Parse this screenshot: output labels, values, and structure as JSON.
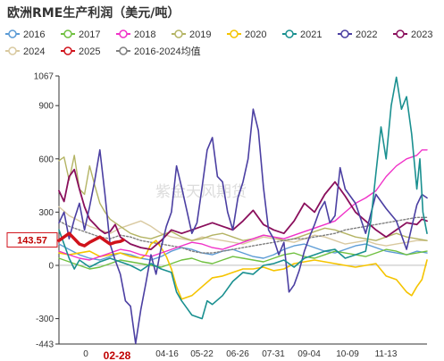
{
  "chart_data": {
    "type": "line",
    "title": "欧洲RME生产利润（美元/吨）",
    "watermark": "紫金天风期货",
    "x_ticks": [
      "0",
      "02-28",
      "04-16",
      "05-22",
      "06-26",
      "07-31",
      "09-04",
      "10-09",
      "11-13"
    ],
    "highlight_tick": "02-28",
    "y_ticks": [
      1067,
      900,
      600,
      300,
      0,
      -300,
      -443
    ],
    "ylim": [
      -443,
      1067
    ],
    "latest_value_label": "143.57",
    "grid": false,
    "legend_position": "top",
    "series": [
      {
        "name": "2016",
        "color": "#5b9bd5",
        "width": 1.4,
        "x": [
          0,
          10,
          20,
          30,
          40,
          50,
          60,
          70,
          80,
          90,
          100,
          110,
          120,
          130,
          140,
          150,
          160,
          170,
          180,
          190,
          200,
          210,
          220,
          230,
          240,
          250,
          260,
          270,
          280,
          290,
          300,
          310,
          320,
          330,
          340,
          350,
          360
        ],
        "y": [
          120,
          90,
          60,
          40,
          30,
          50,
          70,
          60,
          40,
          30,
          50,
          80,
          100,
          90,
          70,
          60,
          80,
          90,
          70,
          50,
          40,
          60,
          90,
          110,
          120,
          100,
          80,
          70,
          90,
          110,
          120,
          100,
          80,
          70,
          60,
          80,
          70
        ]
      },
      {
        "name": "2017",
        "color": "#70c040",
        "width": 1.4,
        "x": [
          0,
          10,
          20,
          30,
          40,
          50,
          60,
          70,
          80,
          90,
          100,
          110,
          120,
          130,
          140,
          150,
          160,
          170,
          180,
          190,
          200,
          210,
          220,
          230,
          240,
          250,
          260,
          270,
          280,
          290,
          300,
          310,
          320,
          330,
          340,
          350,
          360
        ],
        "y": [
          40,
          20,
          0,
          -20,
          -10,
          10,
          30,
          20,
          10,
          0,
          -10,
          10,
          30,
          40,
          20,
          10,
          30,
          50,
          40,
          30,
          20,
          40,
          60,
          70,
          50,
          40,
          60,
          80,
          70,
          60,
          50,
          70,
          90,
          80,
          60,
          70,
          80
        ]
      },
      {
        "name": "2018",
        "color": "#f032c8",
        "width": 1.4,
        "x": [
          0,
          10,
          20,
          30,
          40,
          50,
          60,
          70,
          80,
          90,
          100,
          110,
          120,
          130,
          140,
          150,
          160,
          170,
          180,
          190,
          200,
          210,
          220,
          230,
          240,
          250,
          260,
          270,
          280,
          290,
          300,
          310,
          320,
          330,
          340,
          350,
          355,
          360
        ],
        "y": [
          80,
          60,
          40,
          30,
          50,
          70,
          90,
          80,
          60,
          50,
          70,
          90,
          110,
          130,
          120,
          100,
          90,
          110,
          130,
          150,
          170,
          160,
          150,
          170,
          190,
          210,
          230,
          250,
          300,
          350,
          380,
          420,
          500,
          560,
          600,
          620,
          650,
          650
        ]
      },
      {
        "name": "2019",
        "color": "#b4b464",
        "width": 1.4,
        "x": [
          0,
          5,
          10,
          15,
          20,
          25,
          30,
          35,
          40,
          45,
          50,
          55,
          60,
          65,
          70,
          80,
          90,
          100,
          110,
          120,
          130,
          140,
          150,
          160,
          170,
          180,
          190,
          200,
          210,
          220,
          230,
          240,
          250,
          260,
          270,
          280,
          290,
          300,
          310,
          320,
          330,
          340,
          350,
          360
        ],
        "y": [
          590,
          610,
          480,
          620,
          430,
          400,
          560,
          450,
          350,
          300,
          260,
          240,
          220,
          200,
          180,
          160,
          150,
          170,
          190,
          160,
          140,
          150,
          170,
          180,
          160,
          140,
          150,
          170,
          160,
          140,
          150,
          170,
          190,
          210,
          200,
          180,
          160,
          150,
          140,
          160,
          180,
          160,
          150,
          140
        ]
      },
      {
        "name": "2020",
        "color": "#f5c400",
        "width": 1.6,
        "x": [
          0,
          10,
          20,
          30,
          40,
          50,
          60,
          70,
          80,
          85,
          90,
          95,
          100,
          105,
          110,
          115,
          120,
          130,
          140,
          150,
          160,
          170,
          180,
          190,
          200,
          210,
          220,
          230,
          240,
          250,
          260,
          270,
          280,
          290,
          300,
          310,
          320,
          330,
          340,
          345,
          350,
          355,
          360
        ],
        "y": [
          70,
          60,
          70,
          80,
          50,
          60,
          70,
          50,
          40,
          60,
          120,
          140,
          100,
          50,
          -20,
          -120,
          -190,
          -170,
          -120,
          -70,
          -60,
          -40,
          -20,
          -20,
          -10,
          -30,
          -20,
          10,
          20,
          30,
          20,
          10,
          0,
          -10,
          0,
          10,
          -60,
          -80,
          -150,
          -170,
          -120,
          -80,
          30
        ]
      },
      {
        "name": "2021",
        "color": "#1a9090",
        "width": 1.6,
        "x": [
          0,
          5,
          10,
          15,
          20,
          25,
          30,
          40,
          50,
          60,
          70,
          80,
          90,
          100,
          110,
          115,
          120,
          125,
          130,
          135,
          140,
          145,
          150,
          160,
          170,
          180,
          190,
          200,
          210,
          220,
          230,
          240,
          250,
          260,
          270,
          280,
          290,
          300,
          305,
          310,
          315,
          320,
          325,
          330,
          335,
          340,
          345,
          350,
          353,
          356,
          360
        ],
        "y": [
          200,
          120,
          40,
          -20,
          30,
          10,
          -10,
          20,
          40,
          20,
          0,
          -30,
          10,
          -20,
          -40,
          -150,
          -200,
          -240,
          -280,
          -290,
          -300,
          -200,
          -220,
          -170,
          -90,
          -40,
          -50,
          0,
          10,
          30,
          -10,
          40,
          60,
          80,
          90,
          40,
          60,
          80,
          250,
          520,
          780,
          600,
          900,
          1060,
          880,
          950,
          740,
          430,
          600,
          300,
          180
        ]
      },
      {
        "name": "2022",
        "color": "#4b3fa2",
        "width": 1.6,
        "x": [
          0,
          5,
          10,
          15,
          20,
          25,
          30,
          35,
          40,
          45,
          50,
          55,
          60,
          65,
          70,
          75,
          80,
          85,
          90,
          95,
          100,
          105,
          110,
          115,
          120,
          125,
          130,
          135,
          140,
          145,
          150,
          155,
          160,
          165,
          170,
          175,
          180,
          185,
          190,
          195,
          200,
          205,
          210,
          215,
          220,
          225,
          230,
          235,
          240,
          245,
          250,
          255,
          260,
          265,
          270,
          275,
          280,
          290,
          300,
          310,
          320,
          330,
          340,
          350,
          355,
          360
        ],
        "y": [
          240,
          300,
          150,
          260,
          350,
          200,
          330,
          480,
          650,
          400,
          120,
          30,
          -50,
          -200,
          -230,
          -440,
          -250,
          -100,
          60,
          -50,
          100,
          220,
          300,
          560,
          440,
          310,
          180,
          240,
          440,
          650,
          720,
          500,
          470,
          300,
          200,
          380,
          470,
          600,
          880,
          760,
          440,
          200,
          150,
          60,
          130,
          -150,
          -110,
          -30,
          80,
          160,
          230,
          310,
          360,
          240,
          280,
          550,
          430,
          350,
          180,
          400,
          320,
          250,
          90,
          340,
          400,
          380
        ]
      },
      {
        "name": "2023",
        "color": "#8a0f5c",
        "width": 1.8,
        "x": [
          0,
          5,
          10,
          15,
          20,
          25,
          30,
          35,
          40,
          45,
          50,
          55,
          60,
          70,
          80,
          90,
          100,
          110,
          120,
          130,
          140,
          150,
          160,
          170,
          180,
          190,
          200,
          210,
          220,
          230,
          240,
          250,
          260,
          270,
          280,
          290,
          300,
          310,
          320,
          330,
          340,
          350,
          355,
          360
        ],
        "y": [
          420,
          360,
          500,
          540,
          430,
          330,
          260,
          230,
          200,
          180,
          190,
          230,
          160,
          120,
          100,
          90,
          140,
          200,
          180,
          200,
          220,
          240,
          220,
          200,
          250,
          310,
          230,
          200,
          180,
          250,
          350,
          300,
          400,
          470,
          390,
          300,
          250,
          200,
          160,
          200,
          240,
          230,
          260,
          250
        ]
      },
      {
        "name": "2024",
        "color": "#d9c9a0",
        "width": 1.4,
        "x": [
          0,
          10,
          20,
          30,
          40,
          50,
          60,
          70,
          80,
          90,
          100,
          110,
          120,
          130,
          140,
          150,
          160,
          170,
          180,
          190,
          200,
          210,
          220,
          230,
          240,
          250,
          260,
          270,
          280,
          290,
          300,
          310,
          320,
          330,
          340,
          350,
          360
        ],
        "y": [
          330,
          280,
          250,
          220,
          200,
          180,
          210,
          230,
          250,
          220,
          180,
          160,
          150,
          140,
          160,
          150,
          140,
          130,
          120,
          140,
          160,
          150,
          140,
          130,
          150,
          170,
          160,
          140,
          120,
          130,
          140,
          120,
          110,
          120,
          130,
          140,
          140
        ]
      },
      {
        "name": "2025",
        "color": "#d0121b",
        "width": 3.5,
        "x": [
          0,
          5,
          10,
          15,
          20,
          25,
          30,
          35,
          40,
          45,
          50,
          55,
          60,
          63
        ],
        "y": [
          140,
          160,
          180,
          150,
          120,
          110,
          130,
          145,
          160,
          140,
          120,
          130,
          135,
          143.57
        ]
      },
      {
        "name": "2016-2024均值",
        "color": "#7f7f7f",
        "width": 1.4,
        "dashed": true,
        "x": [
          0,
          10,
          20,
          30,
          40,
          50,
          60,
          70,
          80,
          90,
          100,
          110,
          120,
          130,
          140,
          150,
          160,
          170,
          180,
          190,
          200,
          210,
          220,
          230,
          240,
          250,
          260,
          270,
          280,
          290,
          300,
          310,
          320,
          330,
          340,
          350,
          360
        ],
        "y": [
          250,
          220,
          200,
          180,
          160,
          150,
          170,
          160,
          140,
          130,
          120,
          110,
          100,
          80,
          70,
          70,
          80,
          90,
          100,
          110,
          120,
          130,
          140,
          150,
          150,
          160,
          170,
          180,
          200,
          210,
          220,
          230,
          240,
          250,
          260,
          270,
          270
        ]
      }
    ]
  }
}
